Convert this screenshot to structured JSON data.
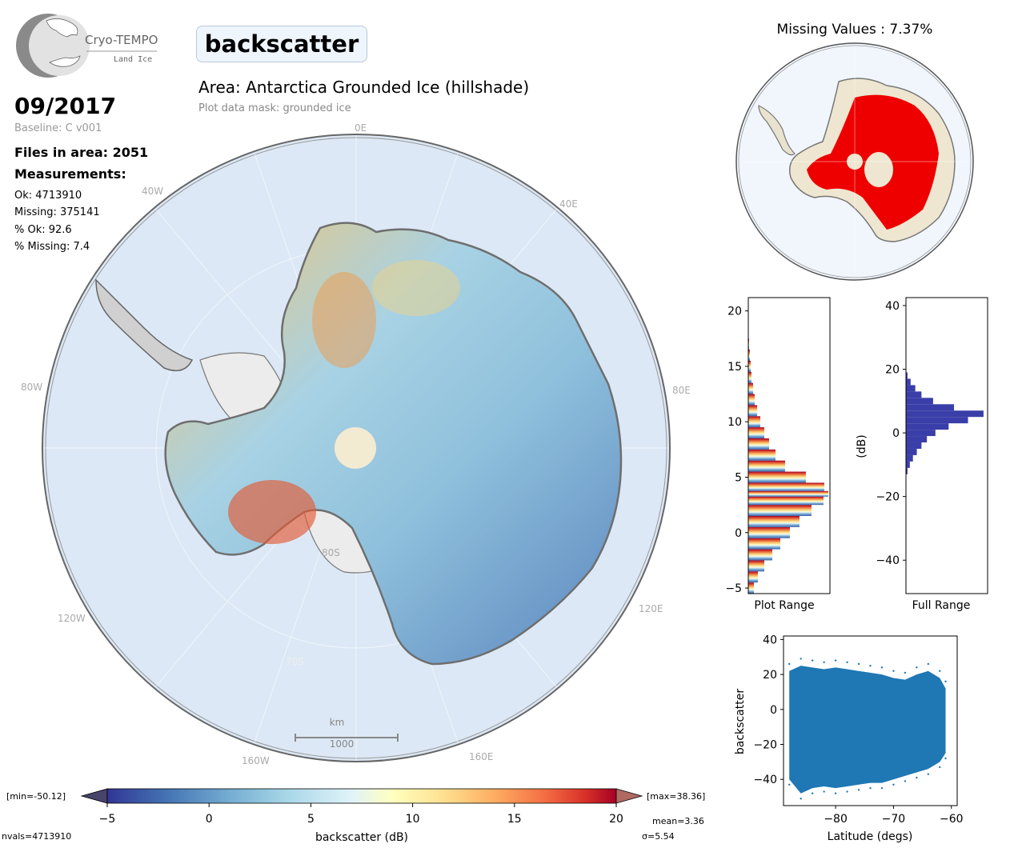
{
  "logo": {
    "title": "Cryo-TEMPO",
    "subtitle": "Land Ice"
  },
  "parameter": "backscatter",
  "area_title": "Area: Antarctica Grounded Ice (hillshade)",
  "mask_note": "Plot data mask: grounded ice",
  "date": "09/2017",
  "baseline": "Baseline: C v001",
  "files_in_area": "Files in area: 2051",
  "measurements_label": "Measurements:",
  "stats": {
    "ok": "Ok: 4713910",
    "missing": "Missing: 375141",
    "pct_ok": "% Ok: 92.6",
    "pct_missing": "% Missing: 7.4"
  },
  "missing_values_title": "Missing Values : 7.37%",
  "map": {
    "lon_labels": [
      "0E",
      "40E",
      "80E",
      "120E",
      "160E",
      "160W",
      "120W",
      "80W",
      "40W"
    ],
    "lat_labels": [
      "80S",
      "70S"
    ],
    "scale_bar": {
      "unit": "km",
      "value": "1000"
    }
  },
  "colorbar": {
    "min_label": "[min=-50.12]",
    "max_label": "[max=38.36]",
    "ticks": [
      "−5",
      "0",
      "5",
      "10",
      "15",
      "20"
    ],
    "label": "backscatter (dB)",
    "nvals": "nvals=4713910",
    "mean": "mean=3.36",
    "sigma": "σ=5.54"
  },
  "colors": {
    "ocean": "#dce8f5",
    "ice_shelf": "#eeeeee",
    "missing": "#ee0000",
    "coast": "#777777",
    "full_range_bars": "#3a3ea8",
    "scatter": "#1f77b4"
  },
  "chart_data": [
    {
      "type": "bar",
      "title": "",
      "xlabel": "Plot Range",
      "ylabel": "",
      "orientation": "horizontal",
      "ylim": [
        -5.5,
        21.2
      ],
      "yticks": [
        "−5",
        "0",
        "5",
        "10",
        "15",
        "20"
      ],
      "bins_center": [
        -5,
        -4,
        -3,
        -2,
        -1,
        0,
        1,
        2,
        3,
        3.5,
        4,
        5,
        6,
        7,
        8,
        9,
        10,
        11,
        12,
        13,
        14,
        15,
        16,
        17
      ],
      "relative_counts": [
        0.07,
        0.12,
        0.2,
        0.3,
        0.4,
        0.52,
        0.64,
        0.79,
        0.94,
        1.0,
        0.95,
        0.72,
        0.46,
        0.34,
        0.26,
        0.2,
        0.15,
        0.11,
        0.08,
        0.06,
        0.04,
        0.03,
        0.02,
        0.01
      ]
    },
    {
      "type": "bar",
      "title": "",
      "xlabel": "Full Range",
      "ylabel": "(dB)",
      "orientation": "horizontal",
      "ylim": [
        -50.5,
        42.5
      ],
      "yticks": [
        "−40",
        "−20",
        "0",
        "20",
        "40"
      ],
      "bins_center": [
        -12,
        -10,
        -8,
        -6,
        -4,
        -2,
        0,
        2,
        4,
        6,
        8,
        10,
        12,
        14,
        16,
        18
      ],
      "relative_counts": [
        0.02,
        0.05,
        0.09,
        0.14,
        0.2,
        0.27,
        0.38,
        0.55,
        0.8,
        1.0,
        0.62,
        0.35,
        0.2,
        0.12,
        0.06,
        0.02
      ]
    },
    {
      "type": "scatter",
      "title": "",
      "xlabel": "Latitude (degs)",
      "ylabel": "backscatter",
      "xlim": [
        -89,
        -59
      ],
      "ylim": [
        -55,
        42
      ],
      "xticks": [
        "−80",
        "−70",
        "−60"
      ],
      "yticks": [
        "−40",
        "−20",
        "0",
        "20",
        "40"
      ],
      "series": [
        {
          "x": [
            -88,
            -86,
            -84,
            -82,
            -80,
            -78,
            -76,
            -74,
            -72,
            -70,
            -68,
            -66,
            -64,
            -62,
            -61
          ],
          "y_max": [
            22,
            25,
            24,
            23,
            24,
            23,
            22,
            21,
            20,
            18,
            17,
            20,
            22,
            18,
            12
          ],
          "y_min": [
            -40,
            -48,
            -45,
            -44,
            -45,
            -44,
            -43,
            -42,
            -42,
            -40,
            -38,
            -36,
            -34,
            -30,
            -25
          ]
        }
      ]
    }
  ]
}
